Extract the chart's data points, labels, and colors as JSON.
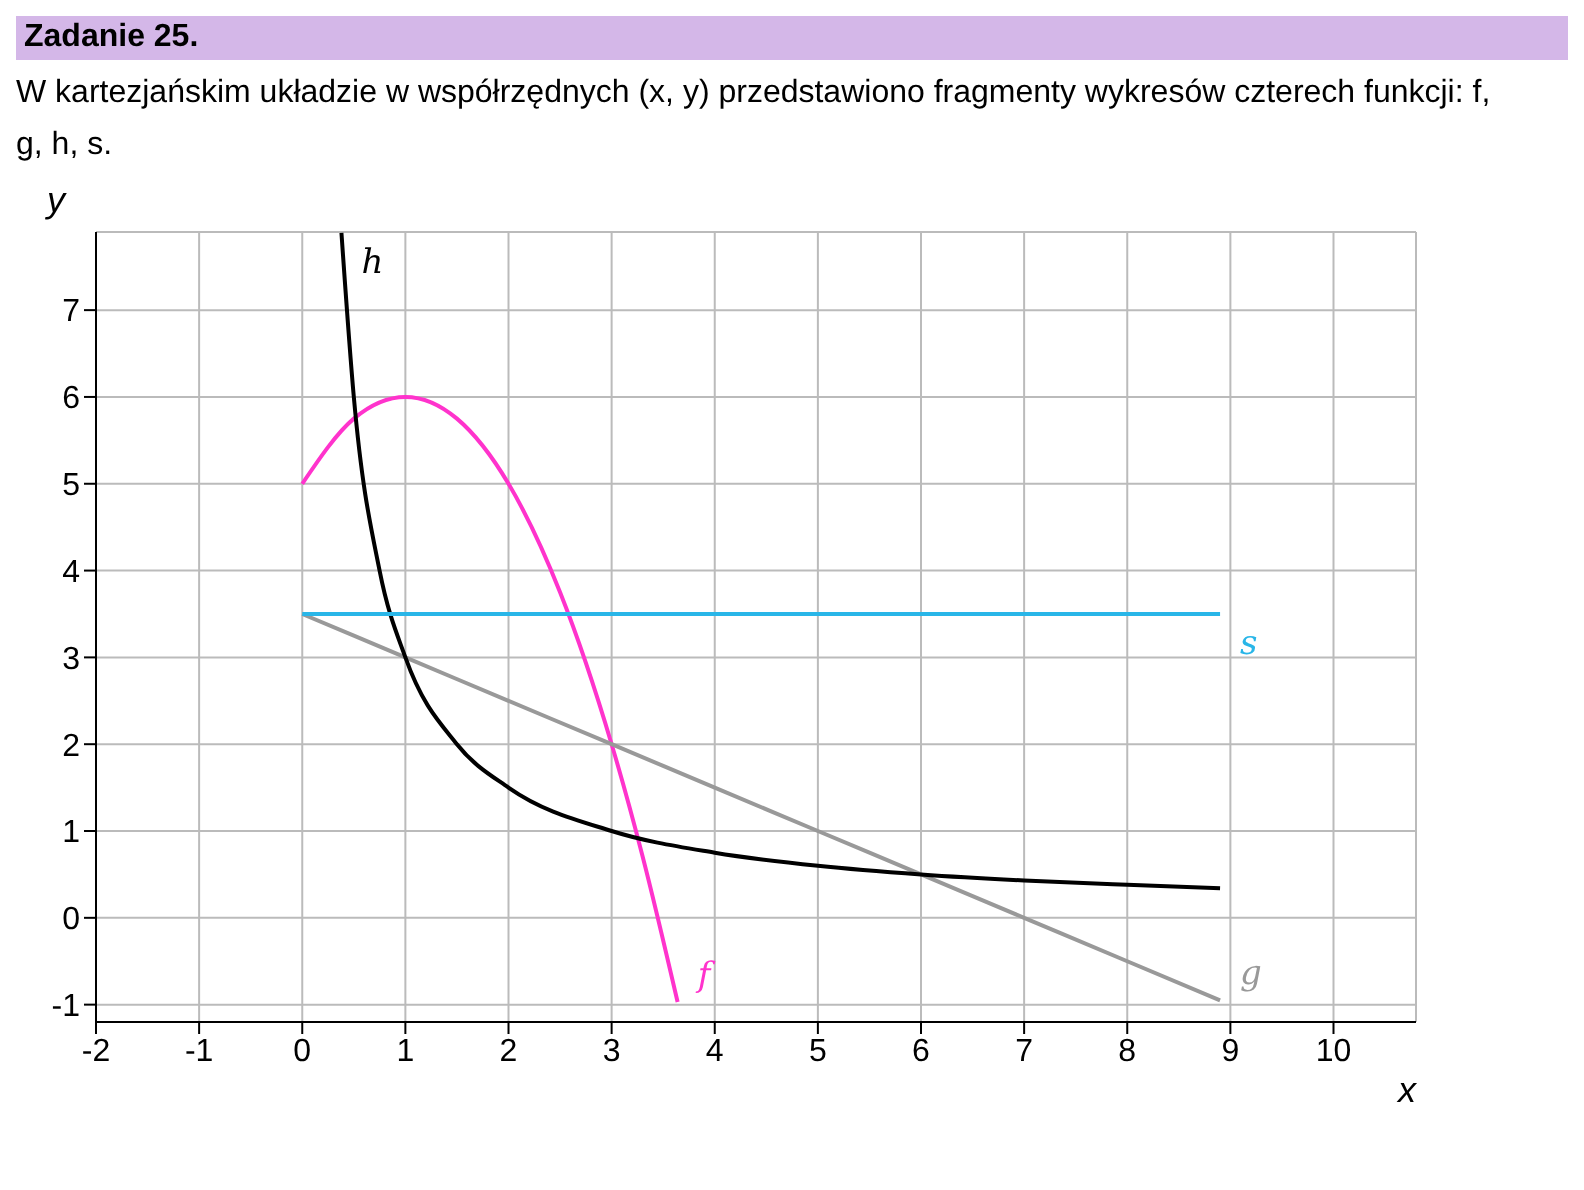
{
  "chart_data": {
    "type": "line",
    "title": "Zadanie 25.",
    "subtitle": "W kartezjańskim układzie w współrzędnych  (x, y)  przedstawiono fragmenty wykresów czterech funkcji:  f, g, h, s.",
    "xlabel": "x",
    "ylabel": "y",
    "series": [
      {
        "name": "f",
        "color": "#ff33cc",
        "x": [
          0,
          0.5,
          1,
          1.5,
          2,
          2.5,
          3,
          3.3,
          3.64
        ],
        "values": [
          5,
          5.75,
          6,
          5.75,
          5,
          3.75,
          2,
          0.71,
          -0.97
        ]
      },
      {
        "name": "g",
        "color": "#999999",
        "x": [
          0,
          1,
          2,
          3,
          4,
          5,
          6,
          7,
          8,
          8.9
        ],
        "values": [
          3.5,
          3,
          2.5,
          2,
          1.5,
          1,
          0.5,
          0,
          -0.5,
          -0.95
        ]
      },
      {
        "name": "h",
        "color": "#000000",
        "x": [
          0.38,
          0.5,
          0.75,
          1,
          1.5,
          2,
          3,
          4,
          5,
          6,
          7,
          8,
          8.9
        ],
        "values": [
          7.89,
          6,
          4,
          3,
          2,
          1.5,
          1,
          0.75,
          0.6,
          0.5,
          0.43,
          0.38,
          0.34
        ]
      },
      {
        "name": "s",
        "color": "#29b6e8",
        "x": [
          0,
          8.9
        ],
        "values": [
          3.5,
          3.5
        ]
      }
    ],
    "xlim": [
      -2,
      10.8
    ],
    "ylim": [
      -1.2,
      7.9
    ],
    "xticks": [
      -2,
      -1,
      0,
      1,
      2,
      3,
      4,
      5,
      6,
      7,
      8,
      9,
      10
    ],
    "yticks": [
      -1,
      0,
      1,
      2,
      3,
      4,
      5,
      6,
      7
    ],
    "grid": true,
    "legend": false,
    "marker": "none",
    "line_style": "solid"
  }
}
